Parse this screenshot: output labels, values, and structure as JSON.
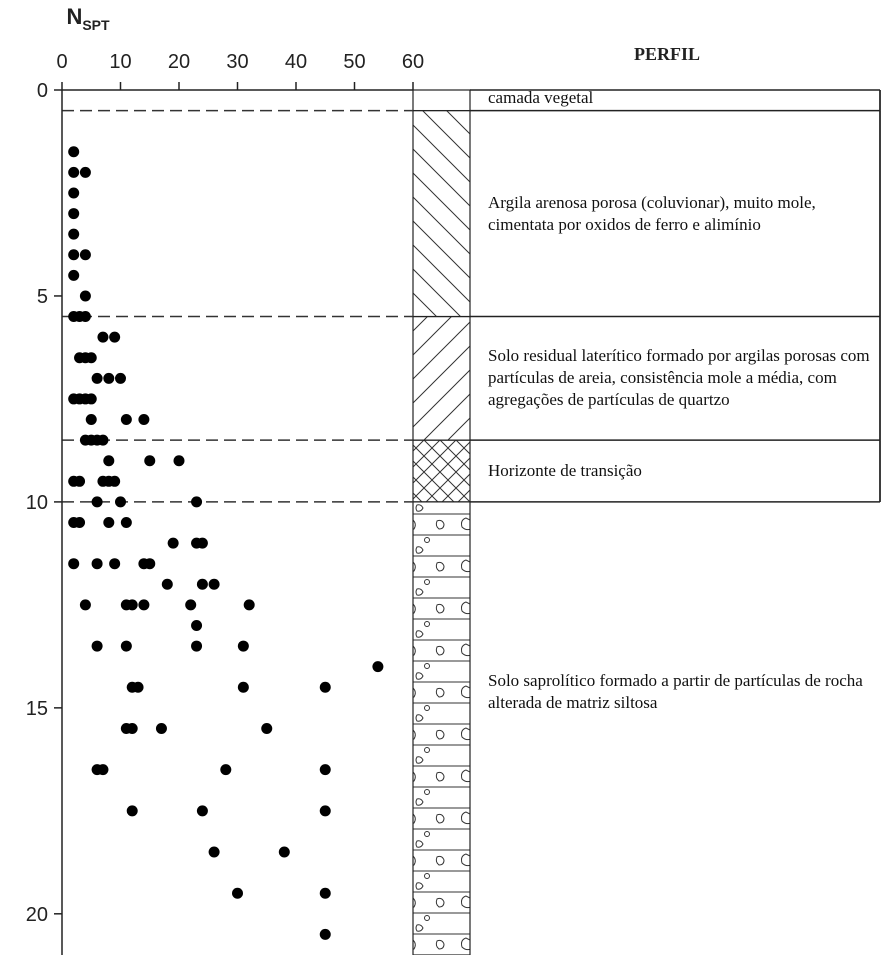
{
  "chart_data": {
    "type": "scatter",
    "x_label": "N",
    "x_label_sub": "SPT",
    "profile_title": "PERFIL",
    "xlim": [
      0,
      60
    ],
    "xticks": [
      0,
      10,
      20,
      30,
      40,
      50,
      60
    ],
    "ylim": [
      0,
      21
    ],
    "yticks": [
      0,
      5,
      10,
      15,
      20
    ],
    "color": "#000000",
    "x": [
      2,
      2,
      4,
      2,
      2,
      2,
      2,
      4,
      2,
      4,
      2,
      3,
      4,
      7,
      9,
      3,
      4,
      5,
      6,
      8,
      10,
      2,
      3,
      4,
      5,
      5,
      11,
      14,
      4,
      5,
      6,
      7,
      8,
      15,
      20,
      2,
      3,
      7,
      8,
      9,
      6,
      10,
      23,
      2,
      3,
      8,
      11,
      19,
      23,
      24,
      2,
      6,
      9,
      14,
      15,
      18,
      24,
      26,
      4,
      11,
      12,
      14,
      22,
      32,
      23,
      6,
      11,
      23,
      31,
      54,
      12,
      13,
      31,
      45,
      11,
      12,
      17,
      35,
      6,
      7,
      28,
      45,
      12,
      24,
      45,
      26,
      38,
      30,
      45,
      45
    ],
    "values": [
      1.5,
      2,
      2,
      2.5,
      3,
      3.5,
      4,
      4,
      4.5,
      5,
      5.5,
      5.5,
      5.5,
      6,
      6,
      6.5,
      6.5,
      6.5,
      7,
      7,
      7,
      7.5,
      7.5,
      7.5,
      7.5,
      8,
      8,
      8,
      8.5,
      8.5,
      8.5,
      8.5,
      9,
      9,
      9,
      9.5,
      9.5,
      9.5,
      9.5,
      9.5,
      10,
      10,
      10,
      10.5,
      10.5,
      10.5,
      10.5,
      11,
      11,
      11,
      11.5,
      11.5,
      11.5,
      11.5,
      11.5,
      12,
      12,
      12,
      12.5,
      12.5,
      12.5,
      12.5,
      12.5,
      12.5,
      13,
      13.5,
      13.5,
      13.5,
      13.5,
      14,
      14.5,
      14.5,
      14.5,
      14.5,
      15.5,
      15.5,
      15.5,
      15.5,
      16.5,
      16.5,
      16.5,
      16.5,
      17.5,
      17.5,
      17.5,
      18.5,
      18.5,
      19.5,
      19.5,
      20.5
    ],
    "layers": [
      {
        "top": 0,
        "pattern": "blank",
        "description": "camada vegetal"
      },
      {
        "top": 0.5,
        "pattern": "back-diagonal",
        "description": "Argila arenosa porosa (coluvionar), muito mole, cimentata por oxidos de ferro e alimínio"
      },
      {
        "top": 5.5,
        "pattern": "diagonal",
        "description": "Solo residual laterítico formado por argilas porosas com partículas de areia, consistência mole a média, com agregações de partículas de quartzo"
      },
      {
        "top": 8.5,
        "pattern": "crosshatch",
        "description": "Horizonte de transição"
      },
      {
        "top": 10,
        "pattern": "gravel",
        "description": "Solo saprolítico formado a partir de partículas de rocha alterada de matriz siltosa"
      }
    ]
  }
}
